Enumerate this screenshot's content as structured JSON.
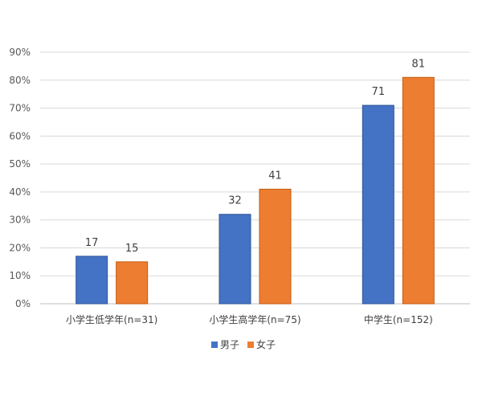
{
  "chart_data": {
    "type": "bar",
    "categories": [
      "小学生低学年(n=31)",
      "小学生高学年(n=75)",
      "中学生(n=152)"
    ],
    "series": [
      {
        "name": "男子",
        "values": [
          17,
          32,
          71
        ],
        "color": "#4472C4"
      },
      {
        "name": "女子",
        "values": [
          15,
          41,
          81
        ],
        "color": "#ED7D31"
      }
    ],
    "ylim": [
      0,
      90
    ],
    "yticks": [
      0,
      10,
      20,
      30,
      40,
      50,
      60,
      70,
      80,
      90
    ],
    "ytick_labels": [
      "0%",
      "10%",
      "20%",
      "30%",
      "40%",
      "50%",
      "60%",
      "70%",
      "80%",
      "90%"
    ],
    "grid": true,
    "legend_position": "bottom"
  }
}
